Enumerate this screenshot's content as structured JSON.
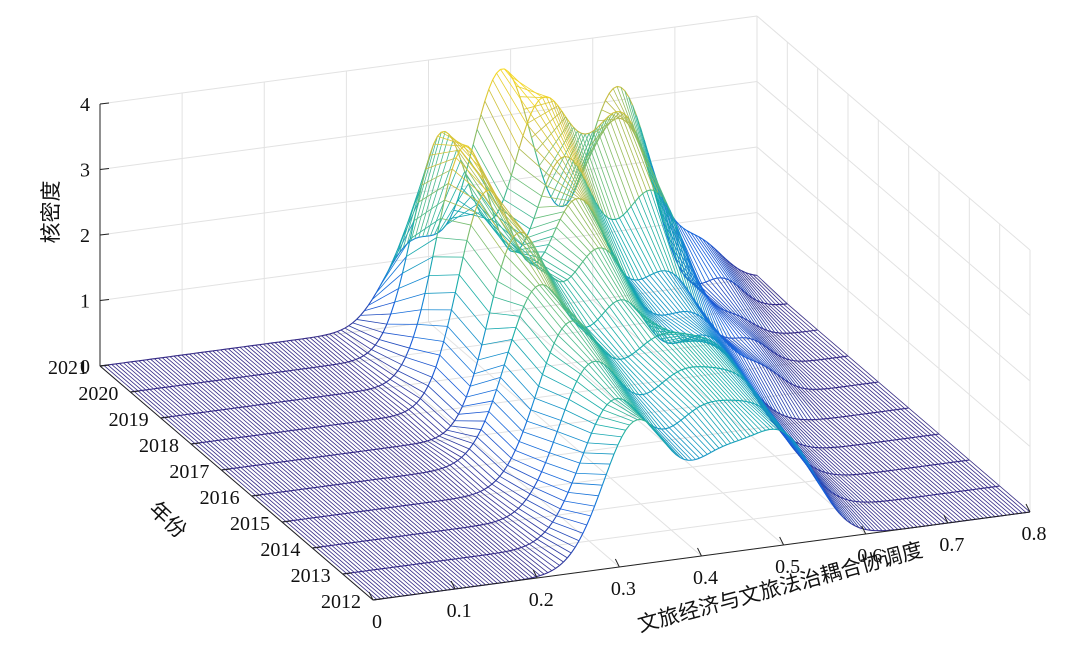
{
  "chart_data": {
    "type": "waterfall",
    "xlabel": "文旅经济与文旅法治耦合协调度",
    "ylabel": "年份",
    "zlabel": "核密度",
    "x_ticks": [
      "0",
      "0.1",
      "0.2",
      "0.3",
      "0.4",
      "0.5",
      "0.6",
      "0.7",
      "0.8"
    ],
    "y_ticks": [
      "2012",
      "2013",
      "2014",
      "2015",
      "2016",
      "2017",
      "2018",
      "2019",
      "2020",
      "2021"
    ],
    "z_ticks": [
      "0",
      "1",
      "2",
      "3",
      "4"
    ],
    "xlim": [
      0,
      0.8
    ],
    "zlim": [
      0,
      4
    ],
    "grid": true,
    "colormap": "parula",
    "series": [
      {
        "year": 2012,
        "peaks": [
          [
            0.32,
            2.15,
            0.04
          ],
          [
            0.42,
            1.3,
            0.04
          ],
          [
            0.5,
            1.55,
            0.04
          ]
        ]
      },
      {
        "year": 2013,
        "peaks": [
          [
            0.33,
            2.05,
            0.04
          ],
          [
            0.43,
            1.4,
            0.04
          ],
          [
            0.51,
            1.5,
            0.045
          ]
        ]
      },
      {
        "year": 2014,
        "peaks": [
          [
            0.34,
            2.2,
            0.04
          ],
          [
            0.44,
            1.5,
            0.04
          ],
          [
            0.52,
            1.55,
            0.045
          ]
        ]
      },
      {
        "year": 2015,
        "peaks": [
          [
            0.35,
            2.4,
            0.04
          ],
          [
            0.45,
            1.6,
            0.04
          ],
          [
            0.53,
            1.6,
            0.045
          ]
        ]
      },
      {
        "year": 2016,
        "peaks": [
          [
            0.35,
            2.6,
            0.04
          ],
          [
            0.45,
            2.0,
            0.035
          ],
          [
            0.55,
            1.5,
            0.045
          ]
        ]
      },
      {
        "year": 2017,
        "peaks": [
          [
            0.36,
            2.9,
            0.035
          ],
          [
            0.46,
            2.5,
            0.04
          ],
          [
            0.57,
            1.4,
            0.045
          ],
          [
            0.66,
            0.3,
            0.025
          ]
        ]
      },
      {
        "year": 2018,
        "peaks": [
          [
            0.36,
            3.2,
            0.035
          ],
          [
            0.47,
            2.9,
            0.04
          ],
          [
            0.58,
            1.6,
            0.04
          ],
          [
            0.68,
            0.4,
            0.025
          ]
        ]
      },
      {
        "year": 2019,
        "peaks": [
          [
            0.37,
            3.5,
            0.035
          ],
          [
            0.49,
            3.1,
            0.04
          ],
          [
            0.6,
            2.4,
            0.04
          ],
          [
            0.7,
            0.3,
            0.025
          ]
        ]
      },
      {
        "year": 2020,
        "peaks": [
          [
            0.38,
            3.3,
            0.035
          ],
          [
            0.5,
            3.5,
            0.04
          ],
          [
            0.6,
            3.1,
            0.04
          ],
          [
            0.72,
            0.5,
            0.025
          ]
        ]
      },
      {
        "year": 2021,
        "peaks": [
          [
            0.38,
            1.2,
            0.035
          ],
          [
            0.49,
            3.7,
            0.04
          ],
          [
            0.63,
            3.2,
            0.04
          ],
          [
            0.73,
            0.6,
            0.03
          ]
        ]
      }
    ]
  }
}
